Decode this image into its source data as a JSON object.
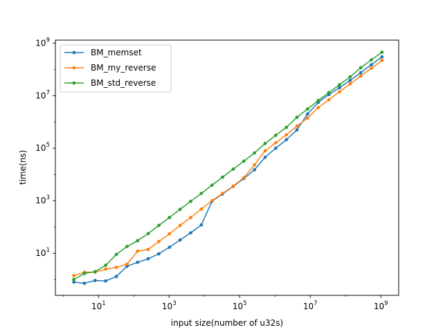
{
  "chart_data": {
    "type": "line",
    "title": "",
    "xlabel": "input size(number of u32s)",
    "ylabel": "time(ns)",
    "xscale": "log",
    "yscale": "log",
    "xlim": [
      0.6,
      3200000000
    ],
    "ylim": [
      0.25,
      1300000000
    ],
    "xticks": [
      {
        "value": 10,
        "base": "10",
        "exp": "1"
      },
      {
        "value": 1000,
        "base": "10",
        "exp": "3"
      },
      {
        "value": 100000,
        "base": "10",
        "exp": "5"
      },
      {
        "value": 10000000,
        "base": "10",
        "exp": "7"
      },
      {
        "value": 1000000000,
        "base": "10",
        "exp": "9"
      }
    ],
    "yticks": [
      {
        "value": 10,
        "base": "10",
        "exp": "1"
      },
      {
        "value": 1000,
        "base": "10",
        "exp": "3"
      },
      {
        "value": 100000,
        "base": "10",
        "exp": "5"
      },
      {
        "value": 10000000,
        "base": "10",
        "exp": "7"
      },
      {
        "value": 1000000000,
        "base": "10",
        "exp": "9"
      }
    ],
    "grid": false,
    "legend_position": "top-left",
    "x": [
      2,
      4,
      8,
      16,
      32,
      64,
      128,
      256,
      512,
      1024,
      2048,
      4096,
      8192,
      16384,
      32768,
      65536,
      131072,
      262144,
      524288,
      1048576,
      2097152,
      4194304,
      8388608,
      16777216,
      33554432,
      67108864,
      134217728,
      268435456,
      536870912,
      1073741824
    ],
    "series": [
      {
        "name": "BM_memset",
        "color": "#1f77b4",
        "values": [
          0.8,
          0.72,
          0.92,
          0.88,
          1.3,
          3.2,
          4.5,
          6.2,
          9.5,
          17,
          32,
          60,
          120,
          950,
          1800,
          3500,
          7000,
          15000,
          45000,
          100000,
          210000,
          500000,
          2000000,
          5500000,
          11000000,
          20000000,
          38000000,
          75000000,
          150000000,
          300000000
        ]
      },
      {
        "name": "BM_my_reverse",
        "color": "#ff7f0e",
        "values": [
          1.4,
          1.9,
          1.9,
          2.5,
          2.9,
          3.8,
          12,
          14,
          28,
          55,
          115,
          230,
          480,
          1000,
          1900,
          3600,
          7500,
          23000,
          80000,
          160000,
          320000,
          700000,
          1400000,
          3500000,
          7000000,
          14000000,
          28000000,
          56000000,
          110000000,
          220000000
        ]
      },
      {
        "name": "BM_std_reverse",
        "color": "#2ca02c",
        "values": [
          1.0,
          1.7,
          2.0,
          3.5,
          9,
          18,
          30,
          56,
          115,
          230,
          470,
          950,
          1900,
          3900,
          7900,
          16000,
          32000,
          66000,
          150000,
          310000,
          620000,
          1500000,
          3100000,
          6500000,
          13000000,
          26000000,
          52000000,
          115000000,
          230000000,
          450000000
        ]
      }
    ]
  }
}
